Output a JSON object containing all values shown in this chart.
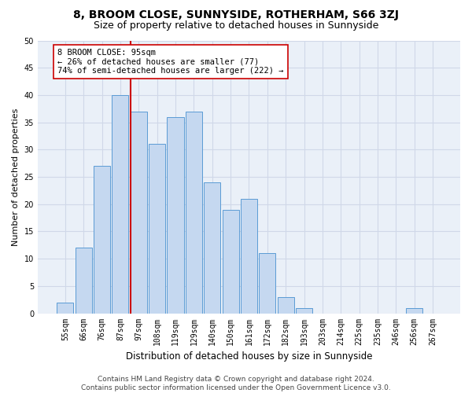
{
  "title": "8, BROOM CLOSE, SUNNYSIDE, ROTHERHAM, S66 3ZJ",
  "subtitle": "Size of property relative to detached houses in Sunnyside",
  "xlabel": "Distribution of detached houses by size in Sunnyside",
  "ylabel": "Number of detached properties",
  "bin_labels": [
    "55sqm",
    "66sqm",
    "76sqm",
    "87sqm",
    "97sqm",
    "108sqm",
    "119sqm",
    "129sqm",
    "140sqm",
    "150sqm",
    "161sqm",
    "172sqm",
    "182sqm",
    "193sqm",
    "203sqm",
    "214sqm",
    "225sqm",
    "235sqm",
    "246sqm",
    "256sqm",
    "267sqm"
  ],
  "bar_values": [
    2,
    12,
    27,
    40,
    37,
    31,
    36,
    37,
    24,
    19,
    21,
    11,
    3,
    1,
    0,
    0,
    0,
    0,
    0,
    1,
    0
  ],
  "bar_color": "#c5d8f0",
  "bar_edge_color": "#5b9bd5",
  "property_bin_index": 4,
  "vline_color": "#cc0000",
  "annotation_text": "8 BROOM CLOSE: 95sqm\n← 26% of detached houses are smaller (77)\n74% of semi-detached houses are larger (222) →",
  "annotation_box_color": "#ffffff",
  "annotation_box_edgecolor": "#cc0000",
  "ylim": [
    0,
    50
  ],
  "yticks": [
    0,
    5,
    10,
    15,
    20,
    25,
    30,
    35,
    40,
    45,
    50
  ],
  "grid_color": "#d0d8e8",
  "background_color": "#eaf0f8",
  "footer_text": "Contains HM Land Registry data © Crown copyright and database right 2024.\nContains public sector information licensed under the Open Government Licence v3.0.",
  "title_fontsize": 10,
  "subtitle_fontsize": 9,
  "xlabel_fontsize": 8.5,
  "ylabel_fontsize": 8,
  "tick_fontsize": 7,
  "annotation_fontsize": 7.5,
  "footer_fontsize": 6.5
}
